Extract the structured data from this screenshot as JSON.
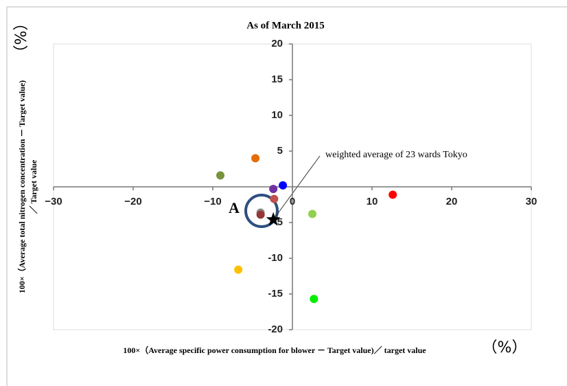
{
  "chart_data": {
    "type": "scatter",
    "title": "As of March 2015",
    "x_label": "100×（Average specific power consumption for blower － Target value)／ target value",
    "y_label": [
      "100×（Average total nitrogen concentration － Target value)",
      "／ Target value"
    ],
    "x_unit": "（%）",
    "y_unit": "（%）",
    "x": [
      -9.05,
      -4.65,
      -1.2,
      -2.4,
      -2.3,
      -4.0,
      -4.0,
      12.6,
      2.5,
      -6.8,
      2.7
    ],
    "values": [
      1.6,
      4.0,
      0.2,
      -0.3,
      -1.7,
      -3.6,
      -3.9,
      -1.1,
      -3.8,
      -11.6,
      -15.7
    ],
    "colors": [
      "#77933c",
      "#e46c0a",
      "#0000ff",
      "#7030a0",
      "#c0504d",
      "#8c8c8c",
      "#953735",
      "#ff0000",
      "#92d050",
      "#ffc000",
      "#00ee00"
    ],
    "star_point": {
      "x": -2.4,
      "y": -4.6
    },
    "annotations": [
      "A",
      "weighted average of 23 wards Tokyo"
    ],
    "xlim": [
      -30,
      30
    ],
    "ylim": [
      -20,
      20
    ],
    "xticks": [
      {
        "value": -30,
        "label": "−30"
      },
      {
        "value": -20,
        "label": "−20"
      },
      {
        "value": -10,
        "label": "−10"
      },
      0,
      10,
      20,
      30
    ],
    "yticks": [
      -20,
      -15,
      -10,
      -5,
      5,
      10,
      15,
      20
    ]
  }
}
